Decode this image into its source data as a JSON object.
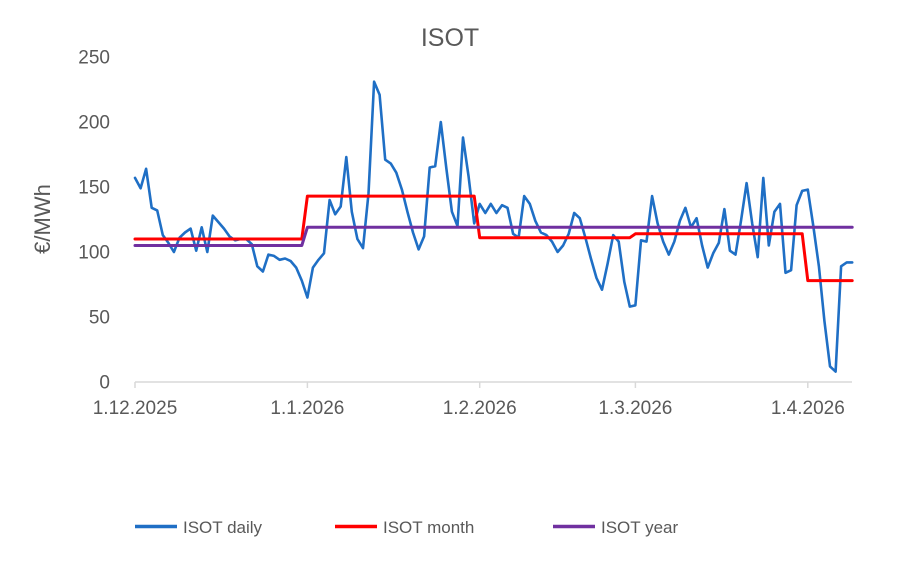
{
  "chart_data": {
    "type": "line",
    "title": "ISOT",
    "ylabel": "€/MWh",
    "xlabel": "",
    "ylim": [
      0,
      250
    ],
    "y_ticks": [
      0,
      50,
      100,
      150,
      200,
      250
    ],
    "x_tick_labels": [
      "1.12.2025",
      "1.1.2026",
      "1.2.2026",
      "1.3.2026",
      "1.4.2026"
    ],
    "x_tick_day_index": [
      0,
      31,
      62,
      90,
      121
    ],
    "grid": false,
    "legend_position": "bottom",
    "series": [
      {
        "name": "ISOT daily",
        "color": "#1F6FC5",
        "kind": "daily",
        "values": [
          157,
          149,
          164,
          134,
          132,
          113,
          107,
          100,
          111,
          115,
          118,
          101,
          119,
          100,
          128,
          123,
          118,
          112,
          109,
          110,
          110,
          106,
          89,
          85,
          98,
          97,
          94,
          95,
          93,
          88,
          78,
          65,
          88,
          94,
          99,
          140,
          129,
          135,
          173,
          131,
          110,
          103,
          145,
          231,
          221,
          171,
          168,
          161,
          148,
          131,
          115,
          102,
          112,
          165,
          166,
          200,
          164,
          131,
          120,
          188,
          158,
          122,
          137,
          130,
          137,
          130,
          136,
          134,
          114,
          111,
          143,
          137,
          124,
          115,
          113,
          108,
          100,
          105,
          114,
          130,
          126,
          111,
          95,
          80,
          71,
          91,
          113,
          108,
          77,
          58,
          59,
          109,
          108,
          143,
          122,
          108,
          98,
          108,
          124,
          134,
          119,
          126,
          105,
          88,
          99,
          107,
          133,
          101,
          98,
          124,
          153,
          122,
          96,
          157,
          105,
          131,
          137,
          84,
          86,
          136,
          147,
          148,
          120,
          89,
          47,
          12,
          8,
          89,
          92,
          92
        ]
      },
      {
        "name": "ISOT month",
        "color": "#FF0000",
        "kind": "step",
        "segments": [
          {
            "from_day": 0,
            "to_day": 30,
            "value": 110
          },
          {
            "from_day": 31,
            "to_day": 61,
            "value": 143
          },
          {
            "from_day": 62,
            "to_day": 89,
            "value": 111
          },
          {
            "from_day": 90,
            "to_day": 120,
            "value": 114
          },
          {
            "from_day": 121,
            "to_day": 129,
            "value": 78
          }
        ]
      },
      {
        "name": "ISOT year",
        "color": "#7030A0",
        "kind": "step",
        "segments": [
          {
            "from_day": 0,
            "to_day": 30,
            "value": 105
          },
          {
            "from_day": 31,
            "to_day": 129,
            "value": 119
          }
        ]
      }
    ]
  },
  "colors": {
    "text": "#595959",
    "axis": "#D9D9D9",
    "background": "#FFFFFF"
  }
}
